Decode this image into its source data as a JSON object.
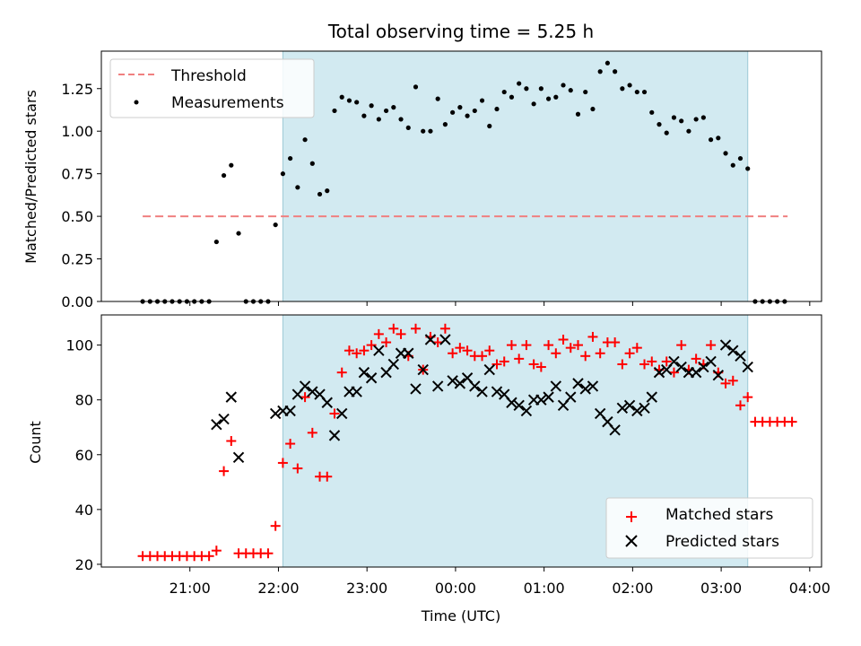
{
  "chart_data": [
    {
      "type": "scatter",
      "title": "Total observing time = 5.25 h",
      "xlabel": "",
      "ylabel": "Matched/Predicted stars",
      "ylim": [
        0,
        1.47
      ],
      "yticks": [
        0.0,
        0.25,
        0.5,
        0.75,
        1.0,
        1.25
      ],
      "ytick_labels": [
        "0.00",
        "0.25",
        "0.50",
        "0.75",
        "1.00",
        "1.25"
      ],
      "shaded_region": [
        "22:03",
        "03:18"
      ],
      "legend_position": "upper-left",
      "threshold": {
        "name": "Threshold",
        "y": 0.5,
        "x_start": "20:28",
        "x_end": "03:45",
        "color": "#f08080"
      },
      "series": [
        {
          "name": "Measurements",
          "color": "#000000",
          "points": [
            [
              "20:28",
              0.0
            ],
            [
              "20:33",
              0.0
            ],
            [
              "20:38",
              0.0
            ],
            [
              "20:43",
              0.0
            ],
            [
              "20:48",
              0.0
            ],
            [
              "20:53",
              0.0
            ],
            [
              "20:58",
              0.0
            ],
            [
              "21:03",
              0.0
            ],
            [
              "21:08",
              0.0
            ],
            [
              "21:13",
              0.0
            ],
            [
              "21:18",
              0.35
            ],
            [
              "21:23",
              0.74
            ],
            [
              "21:28",
              0.8
            ],
            [
              "21:33",
              0.4
            ],
            [
              "21:38",
              0.0
            ],
            [
              "21:43",
              0.0
            ],
            [
              "21:48",
              0.0
            ],
            [
              "21:53",
              0.0
            ],
            [
              "21:58",
              0.45
            ],
            [
              "22:03",
              0.75
            ],
            [
              "22:08",
              0.84
            ],
            [
              "22:13",
              0.67
            ],
            [
              "22:18",
              0.95
            ],
            [
              "22:23",
              0.81
            ],
            [
              "22:28",
              0.63
            ],
            [
              "22:33",
              0.65
            ],
            [
              "22:38",
              1.12
            ],
            [
              "22:43",
              1.2
            ],
            [
              "22:48",
              1.18
            ],
            [
              "22:53",
              1.17
            ],
            [
              "22:58",
              1.09
            ],
            [
              "23:03",
              1.15
            ],
            [
              "23:08",
              1.07
            ],
            [
              "23:13",
              1.12
            ],
            [
              "23:18",
              1.14
            ],
            [
              "23:23",
              1.07
            ],
            [
              "23:28",
              1.02
            ],
            [
              "23:33",
              1.26
            ],
            [
              "23:38",
              1.0
            ],
            [
              "23:43",
              1.0
            ],
            [
              "23:48",
              1.19
            ],
            [
              "23:53",
              1.04
            ],
            [
              "23:58",
              1.11
            ],
            [
              "00:03",
              1.14
            ],
            [
              "00:08",
              1.09
            ],
            [
              "00:13",
              1.12
            ],
            [
              "00:18",
              1.18
            ],
            [
              "00:23",
              1.03
            ],
            [
              "00:28",
              1.13
            ],
            [
              "00:33",
              1.23
            ],
            [
              "00:38",
              1.2
            ],
            [
              "00:43",
              1.28
            ],
            [
              "00:48",
              1.25
            ],
            [
              "00:53",
              1.16
            ],
            [
              "00:58",
              1.25
            ],
            [
              "01:03",
              1.19
            ],
            [
              "01:08",
              1.2
            ],
            [
              "01:13",
              1.27
            ],
            [
              "01:18",
              1.24
            ],
            [
              "01:23",
              1.1
            ],
            [
              "01:28",
              1.23
            ],
            [
              "01:33",
              1.13
            ],
            [
              "01:38",
              1.35
            ],
            [
              "01:43",
              1.4
            ],
            [
              "01:48",
              1.35
            ],
            [
              "01:53",
              1.25
            ],
            [
              "01:58",
              1.27
            ],
            [
              "02:03",
              1.23
            ],
            [
              "02:08",
              1.23
            ],
            [
              "02:13",
              1.11
            ],
            [
              "02:18",
              1.04
            ],
            [
              "02:23",
              0.99
            ],
            [
              "02:28",
              1.08
            ],
            [
              "02:33",
              1.06
            ],
            [
              "02:38",
              1.0
            ],
            [
              "02:43",
              1.07
            ],
            [
              "02:48",
              1.08
            ],
            [
              "02:53",
              0.95
            ],
            [
              "02:58",
              0.96
            ],
            [
              "03:03",
              0.87
            ],
            [
              "03:08",
              0.8
            ],
            [
              "03:13",
              0.84
            ],
            [
              "03:18",
              0.78
            ],
            [
              "03:23",
              0.0
            ],
            [
              "03:28",
              0.0
            ],
            [
              "03:33",
              0.0
            ],
            [
              "03:38",
              0.0
            ],
            [
              "03:43",
              0.0
            ]
          ]
        }
      ]
    },
    {
      "type": "scatter",
      "title": "",
      "xlabel": "Time (UTC)",
      "ylabel": "Count",
      "ylim": [
        19,
        111
      ],
      "yticks": [
        20,
        40,
        60,
        80,
        100
      ],
      "ytick_labels": [
        "20",
        "40",
        "60",
        "80",
        "100"
      ],
      "xlim": [
        "20:00",
        "04:08"
      ],
      "xticks": [
        "21:00",
        "22:00",
        "23:00",
        "00:00",
        "01:00",
        "02:00",
        "03:00",
        "04:00"
      ],
      "shaded_region": [
        "22:03",
        "03:18"
      ],
      "legend_position": "lower-right",
      "series": [
        {
          "name": "Matched stars",
          "color": "#ff0000",
          "marker": "+",
          "points": [
            [
              "20:28",
              23
            ],
            [
              "20:33",
              23
            ],
            [
              "20:38",
              23
            ],
            [
              "20:43",
              23
            ],
            [
              "20:48",
              23
            ],
            [
              "20:53",
              23
            ],
            [
              "20:58",
              23
            ],
            [
              "21:03",
              23
            ],
            [
              "21:08",
              23
            ],
            [
              "21:13",
              23
            ],
            [
              "21:18",
              25
            ],
            [
              "21:23",
              54
            ],
            [
              "21:28",
              65
            ],
            [
              "21:33",
              24
            ],
            [
              "21:38",
              24
            ],
            [
              "21:43",
              24
            ],
            [
              "21:48",
              24
            ],
            [
              "21:53",
              24
            ],
            [
              "21:58",
              34
            ],
            [
              "22:03",
              57
            ],
            [
              "22:08",
              64
            ],
            [
              "22:13",
              55
            ],
            [
              "22:18",
              81
            ],
            [
              "22:23",
              68
            ],
            [
              "22:28",
              52
            ],
            [
              "22:33",
              52
            ],
            [
              "22:38",
              75
            ],
            [
              "22:43",
              90
            ],
            [
              "22:48",
              98
            ],
            [
              "22:53",
              97
            ],
            [
              "22:58",
              98
            ],
            [
              "23:03",
              100
            ],
            [
              "23:08",
              104
            ],
            [
              "23:13",
              101
            ],
            [
              "23:18",
              106
            ],
            [
              "23:23",
              104
            ],
            [
              "23:28",
              96
            ],
            [
              "23:33",
              106
            ],
            [
              "23:38",
              91
            ],
            [
              "23:43",
              103
            ],
            [
              "23:48",
              101
            ],
            [
              "23:53",
              106
            ],
            [
              "23:58",
              97
            ],
            [
              "00:03",
              99
            ],
            [
              "00:08",
              98
            ],
            [
              "00:13",
              96
            ],
            [
              "00:18",
              96
            ],
            [
              "00:23",
              98
            ],
            [
              "00:28",
              93
            ],
            [
              "00:33",
              94
            ],
            [
              "00:38",
              100
            ],
            [
              "00:43",
              95
            ],
            [
              "00:48",
              100
            ],
            [
              "00:53",
              93
            ],
            [
              "00:58",
              92
            ],
            [
              "01:03",
              100
            ],
            [
              "01:08",
              97
            ],
            [
              "01:13",
              102
            ],
            [
              "01:18",
              99
            ],
            [
              "01:23",
              100
            ],
            [
              "01:28",
              96
            ],
            [
              "01:33",
              103
            ],
            [
              "01:38",
              97
            ],
            [
              "01:43",
              101
            ],
            [
              "01:48",
              101
            ],
            [
              "01:53",
              93
            ],
            [
              "01:58",
              97
            ],
            [
              "02:03",
              99
            ],
            [
              "02:08",
              93
            ],
            [
              "02:13",
              94
            ],
            [
              "02:18",
              91
            ],
            [
              "02:23",
              94
            ],
            [
              "02:28",
              90
            ],
            [
              "02:33",
              100
            ],
            [
              "02:38",
              91
            ],
            [
              "02:43",
              95
            ],
            [
              "02:48",
              93
            ],
            [
              "02:53",
              100
            ],
            [
              "02:58",
              90
            ],
            [
              "03:03",
              86
            ],
            [
              "03:08",
              87
            ],
            [
              "03:13",
              78
            ],
            [
              "03:18",
              81
            ],
            [
              "03:23",
              72
            ],
            [
              "03:28",
              72
            ],
            [
              "03:33",
              72
            ],
            [
              "03:38",
              72
            ],
            [
              "03:43",
              72
            ],
            [
              "03:48",
              72
            ]
          ]
        },
        {
          "name": "Predicted stars",
          "color": "#000000",
          "marker": "x",
          "points": [
            [
              "21:18",
              71
            ],
            [
              "21:23",
              73
            ],
            [
              "21:28",
              81
            ],
            [
              "21:33",
              59
            ],
            [
              "21:58",
              75
            ],
            [
              "22:03",
              76
            ],
            [
              "22:08",
              76
            ],
            [
              "22:13",
              82
            ],
            [
              "22:18",
              85
            ],
            [
              "22:23",
              83
            ],
            [
              "22:28",
              82
            ],
            [
              "22:33",
              79
            ],
            [
              "22:38",
              67
            ],
            [
              "22:43",
              75
            ],
            [
              "22:48",
              83
            ],
            [
              "22:53",
              83
            ],
            [
              "22:58",
              90
            ],
            [
              "23:03",
              88
            ],
            [
              "23:08",
              98
            ],
            [
              "23:13",
              90
            ],
            [
              "23:18",
              93
            ],
            [
              "23:23",
              97
            ],
            [
              "23:28",
              97
            ],
            [
              "23:33",
              84
            ],
            [
              "23:38",
              91
            ],
            [
              "23:43",
              102
            ],
            [
              "23:48",
              85
            ],
            [
              "23:53",
              102
            ],
            [
              "23:58",
              87
            ],
            [
              "00:03",
              86
            ],
            [
              "00:08",
              88
            ],
            [
              "00:13",
              85
            ],
            [
              "00:18",
              83
            ],
            [
              "00:23",
              91
            ],
            [
              "00:28",
              83
            ],
            [
              "00:33",
              82
            ],
            [
              "00:38",
              79
            ],
            [
              "00:43",
              78
            ],
            [
              "00:48",
              76
            ],
            [
              "00:53",
              80
            ],
            [
              "00:58",
              80
            ],
            [
              "01:03",
              81
            ],
            [
              "01:08",
              85
            ],
            [
              "01:13",
              78
            ],
            [
              "01:18",
              81
            ],
            [
              "01:23",
              86
            ],
            [
              "01:28",
              84
            ],
            [
              "01:33",
              85
            ],
            [
              "01:38",
              75
            ],
            [
              "01:43",
              72
            ],
            [
              "01:48",
              69
            ],
            [
              "01:53",
              77
            ],
            [
              "01:58",
              78
            ],
            [
              "02:03",
              76
            ],
            [
              "02:08",
              77
            ],
            [
              "02:13",
              81
            ],
            [
              "02:18",
              90
            ],
            [
              "02:23",
              91
            ],
            [
              "02:28",
              94
            ],
            [
              "02:33",
              92
            ],
            [
              "02:38",
              90
            ],
            [
              "02:43",
              90
            ],
            [
              "02:48",
              92
            ],
            [
              "02:53",
              94
            ],
            [
              "02:58",
              89
            ],
            [
              "03:03",
              100
            ],
            [
              "03:08",
              98
            ],
            [
              "03:13",
              96
            ],
            [
              "03:18",
              92
            ]
          ]
        }
      ]
    }
  ]
}
